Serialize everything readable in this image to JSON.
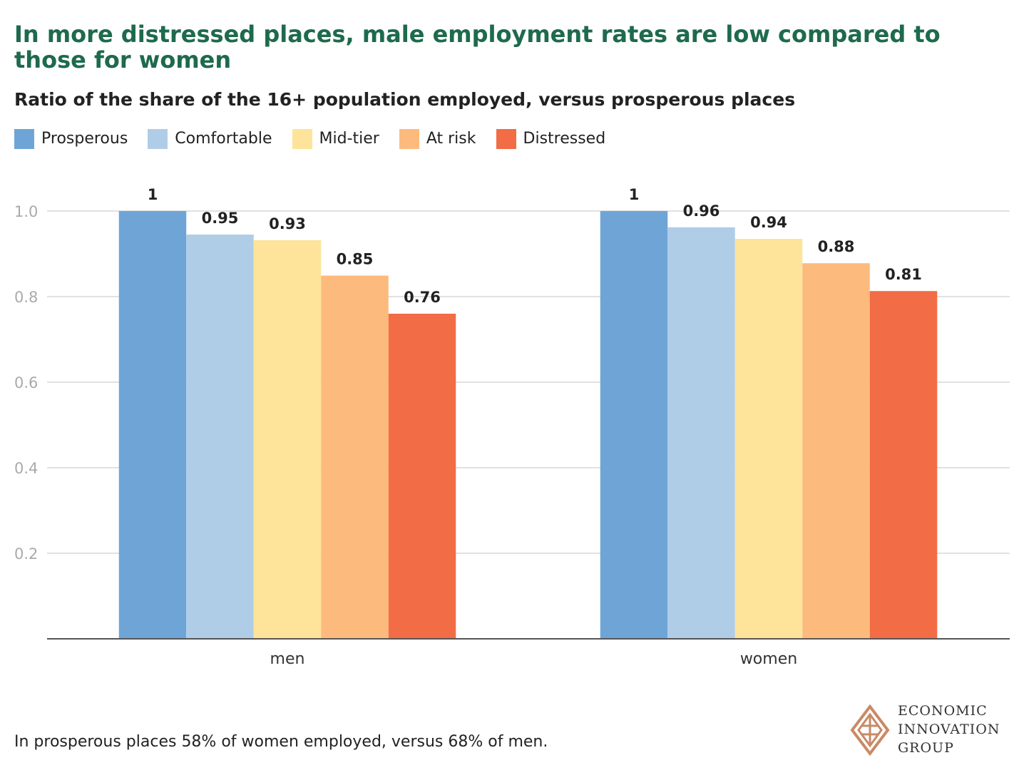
{
  "title": "In more distressed places, male employment rates are low compared to those for women",
  "subtitle": "Ratio of the share of the 16+ population employed, versus prosperous places",
  "footnote": "In prosperous places 58% of women employed, versus 68% of men.",
  "logo": {
    "line1": "ECONOMIC",
    "line2": "INNOVATION",
    "line3": "GROUP"
  },
  "chart_data": {
    "type": "bar",
    "title": "In more distressed places, male employment rates are low compared to those for women",
    "subtitle": "Ratio of the share of the 16+ population employed, versus prosperous places",
    "categories": [
      "men",
      "women"
    ],
    "series": [
      {
        "name": "Prosperous",
        "color": "#6fa5d6",
        "values": [
          1,
          1
        ],
        "labels": [
          "1",
          "1"
        ]
      },
      {
        "name": "Comfortable",
        "color": "#b0cde8",
        "values": [
          0.945,
          0.962
        ],
        "labels": [
          "0.95",
          "0.96"
        ]
      },
      {
        "name": "Mid-tier",
        "color": "#fde49a",
        "values": [
          0.932,
          0.935
        ],
        "labels": [
          "0.93",
          "0.94"
        ]
      },
      {
        "name": "At risk",
        "color": "#fdba7d",
        "values": [
          0.849,
          0.878
        ],
        "labels": [
          "0.85",
          "0.88"
        ]
      },
      {
        "name": "Distressed",
        "color": "#f26c46",
        "values": [
          0.76,
          0.813
        ],
        "labels": [
          "0.76",
          "0.81"
        ]
      }
    ],
    "yticks": [
      0.2,
      0.4,
      0.6,
      0.8,
      1.0
    ],
    "ytick_labels": [
      "0.2",
      "0.4",
      "0.6",
      "0.8",
      "1.0"
    ],
    "ylim": [
      0,
      1.1
    ],
    "xlabel": "",
    "ylabel": "",
    "grid": true,
    "legend": "top-left"
  }
}
